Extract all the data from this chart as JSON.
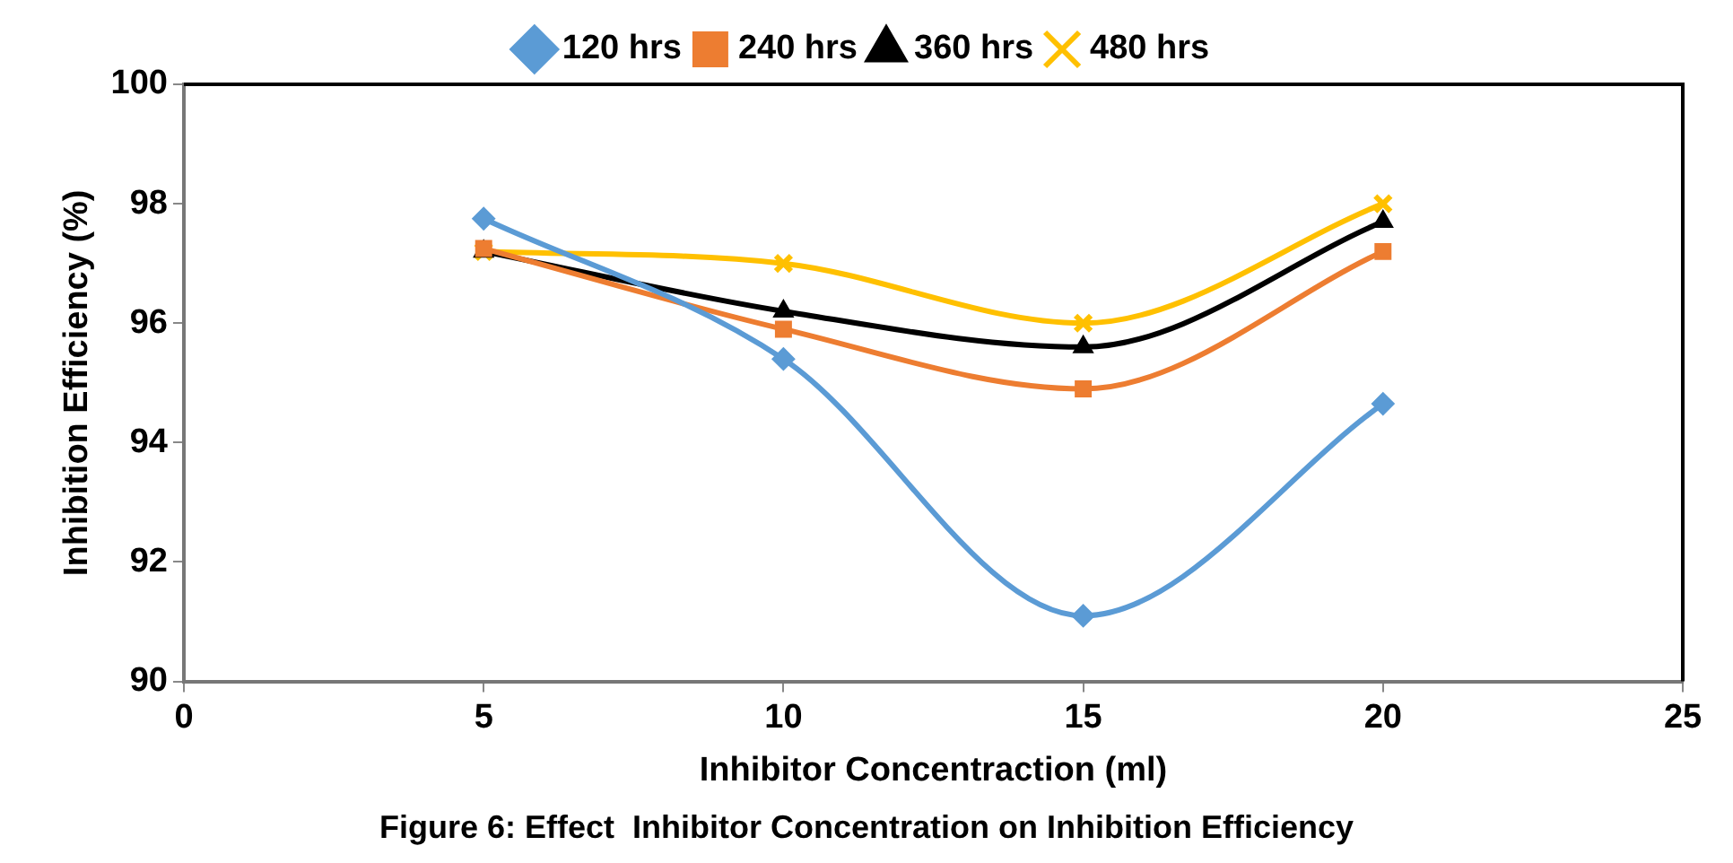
{
  "chart_data": {
    "type": "line",
    "title": "Figure 6: Effect  Inhibitor Concentration on Inhibition Efficiency",
    "xlabel": "Inhibitor Concentraction (ml)",
    "ylabel": "Inhibition Efficiency (%)",
    "x": [
      5,
      10,
      15,
      20
    ],
    "xlim": [
      0,
      25
    ],
    "xticks": [
      0,
      5,
      10,
      15,
      20,
      25
    ],
    "ylim": [
      90,
      100
    ],
    "yticks": [
      90,
      92,
      94,
      96,
      98,
      100
    ],
    "grid": false,
    "legend": "top",
    "line_style": "solid",
    "series": [
      {
        "name": "120 hrs",
        "color": "#5b9bd5",
        "marker": "diamond",
        "values": [
          97.75,
          95.4,
          91.1,
          94.65
        ]
      },
      {
        "name": "240 hrs",
        "color": "#ed7d31",
        "marker": "square",
        "values": [
          97.25,
          95.9,
          94.9,
          97.2
        ]
      },
      {
        "name": "360 hrs",
        "color": "#000000",
        "marker": "triangle",
        "values": [
          97.2,
          96.2,
          95.6,
          97.7
        ]
      },
      {
        "name": "480 hrs",
        "color": "#ffc000",
        "marker": "cross",
        "values": [
          97.2,
          97.0,
          96.0,
          98.0
        ]
      }
    ]
  }
}
